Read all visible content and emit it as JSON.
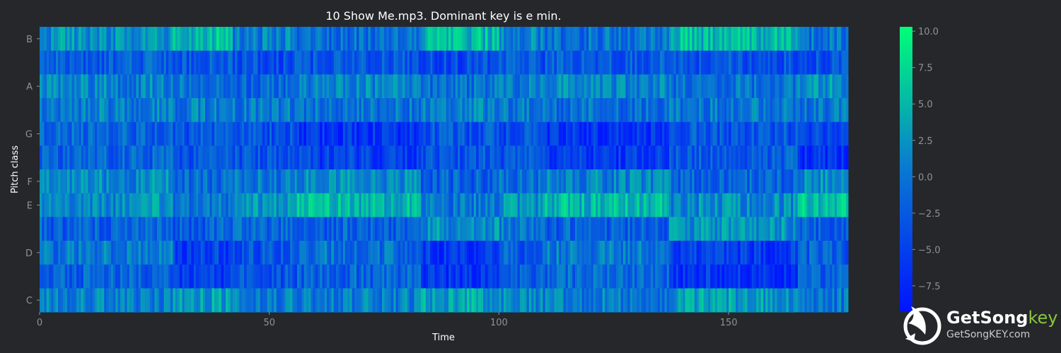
{
  "chart_data": {
    "type": "heatmap",
    "title": "10 Show Me.mp3. Dominant key is e min.",
    "xlabel": "Time",
    "ylabel": "Pitch class",
    "xlim": [
      0,
      176
    ],
    "x_ticks": [
      "0",
      "50",
      "100",
      "150"
    ],
    "x_tick_values": [
      0,
      50,
      100,
      150
    ],
    "rows": [
      "C",
      "C#",
      "D",
      "D#",
      "E",
      "F",
      "F#",
      "G",
      "G#",
      "A",
      "A#",
      "B"
    ],
    "y_tick_labels": [
      "C",
      "D",
      "E",
      "F",
      "G",
      "A",
      "B"
    ],
    "y_tick_rows": [
      0,
      2,
      4,
      5,
      7,
      9,
      11
    ],
    "colorbar": {
      "range": [
        -9.3,
        10.3
      ],
      "ticks": [
        "10.0",
        "7.5",
        "5.0",
        "2.5",
        "0.0",
        "−2.5",
        "−5.0",
        "−7.5"
      ],
      "tick_values": [
        10,
        7.5,
        5,
        2.5,
        0,
        -2.5,
        -5,
        -7.5
      ],
      "colors": [
        "#0014ff",
        "#0a78d2",
        "#00ff78"
      ]
    },
    "segments": [
      {
        "start": 0,
        "end": 29,
        "levels": [
          0.5,
          -1.5,
          0.0,
          -2.0,
          2.0,
          1.5,
          -1.5,
          -1.5,
          0.5,
          1.0,
          -2.0,
          2.0
        ]
      },
      {
        "start": 29,
        "end": 42,
        "levels": [
          3.0,
          -5.5,
          -5.0,
          -2.0,
          0.5,
          -1.0,
          -3.0,
          -2.5,
          0.5,
          0.0,
          -2.5,
          5.5
        ]
      },
      {
        "start": 42,
        "end": 56,
        "levels": [
          0.5,
          -3.0,
          -3.0,
          -1.0,
          2.0,
          0.5,
          -3.0,
          -3.0,
          0.0,
          -1.5,
          -3.5,
          1.0
        ]
      },
      {
        "start": 56,
        "end": 83,
        "levels": [
          0.5,
          -1.5,
          -0.5,
          -2.0,
          5.0,
          1.5,
          -5.0,
          -6.0,
          -0.5,
          1.5,
          -3.0,
          -0.5
        ]
      },
      {
        "start": 83,
        "end": 100,
        "levels": [
          3.5,
          -6.0,
          -6.0,
          2.0,
          0.0,
          -2.0,
          -3.0,
          -3.0,
          1.0,
          -0.5,
          -4.0,
          5.0
        ]
      },
      {
        "start": 100,
        "end": 110,
        "levels": [
          1.0,
          -2.5,
          -2.5,
          0.0,
          2.0,
          -1.0,
          -3.5,
          -3.5,
          0.5,
          0.5,
          -3.0,
          1.0
        ]
      },
      {
        "start": 110,
        "end": 137,
        "levels": [
          0.5,
          -1.5,
          0.0,
          -2.0,
          5.0,
          1.0,
          -5.5,
          -6.0,
          -0.5,
          1.5,
          -2.5,
          -0.5
        ]
      },
      {
        "start": 137,
        "end": 165,
        "levels": [
          3.0,
          -6.0,
          -5.5,
          2.0,
          1.5,
          -1.5,
          -2.5,
          -3.0,
          0.0,
          -0.5,
          -3.0,
          5.0
        ]
      },
      {
        "start": 165,
        "end": 176,
        "levels": [
          0.0,
          -1.5,
          -2.0,
          -2.0,
          6.0,
          1.5,
          -6.5,
          -4.0,
          0.0,
          2.0,
          -3.0,
          0.0
        ]
      }
    ]
  },
  "logo": {
    "brand_main": "GetSong",
    "brand_accent": "key",
    "url": "GetSongKEY.com"
  }
}
